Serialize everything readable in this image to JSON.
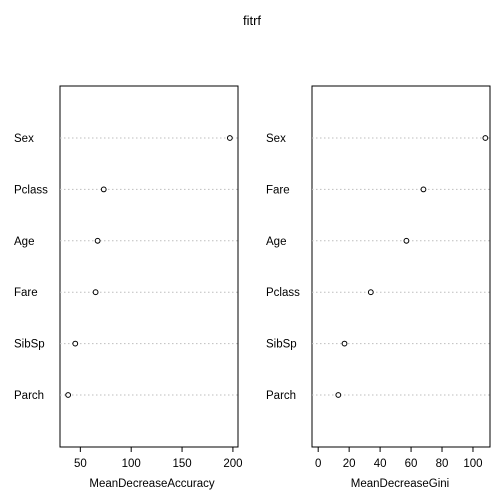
{
  "title": "fitrf",
  "chart_data": [
    {
      "type": "scatter",
      "style": "dotchart",
      "xlabel": "MeanDecreaseAccuracy",
      "ylabel": "",
      "categories": [
        "Sex",
        "Pclass",
        "Age",
        "Fare",
        "SibSp",
        "Parch"
      ],
      "values": [
        197,
        73,
        67,
        65,
        45,
        38
      ],
      "xlim": [
        30,
        205
      ],
      "xticks": [
        50,
        100,
        150,
        200
      ],
      "grid": "dotted horizontal lines",
      "colors": {
        "point": "#000000",
        "grid": "#bebebe"
      }
    },
    {
      "type": "scatter",
      "style": "dotchart",
      "xlabel": "MeanDecreaseGini",
      "ylabel": "",
      "categories": [
        "Sex",
        "Fare",
        "Age",
        "Pclass",
        "SibSp",
        "Parch"
      ],
      "values": [
        108,
        68,
        57,
        34,
        17,
        13
      ],
      "xlim": [
        -4,
        111
      ],
      "xticks": [
        0,
        20,
        40,
        60,
        80,
        100
      ],
      "grid": "dotted horizontal lines",
      "colors": {
        "point": "#000000",
        "grid": "#bebebe"
      }
    }
  ]
}
